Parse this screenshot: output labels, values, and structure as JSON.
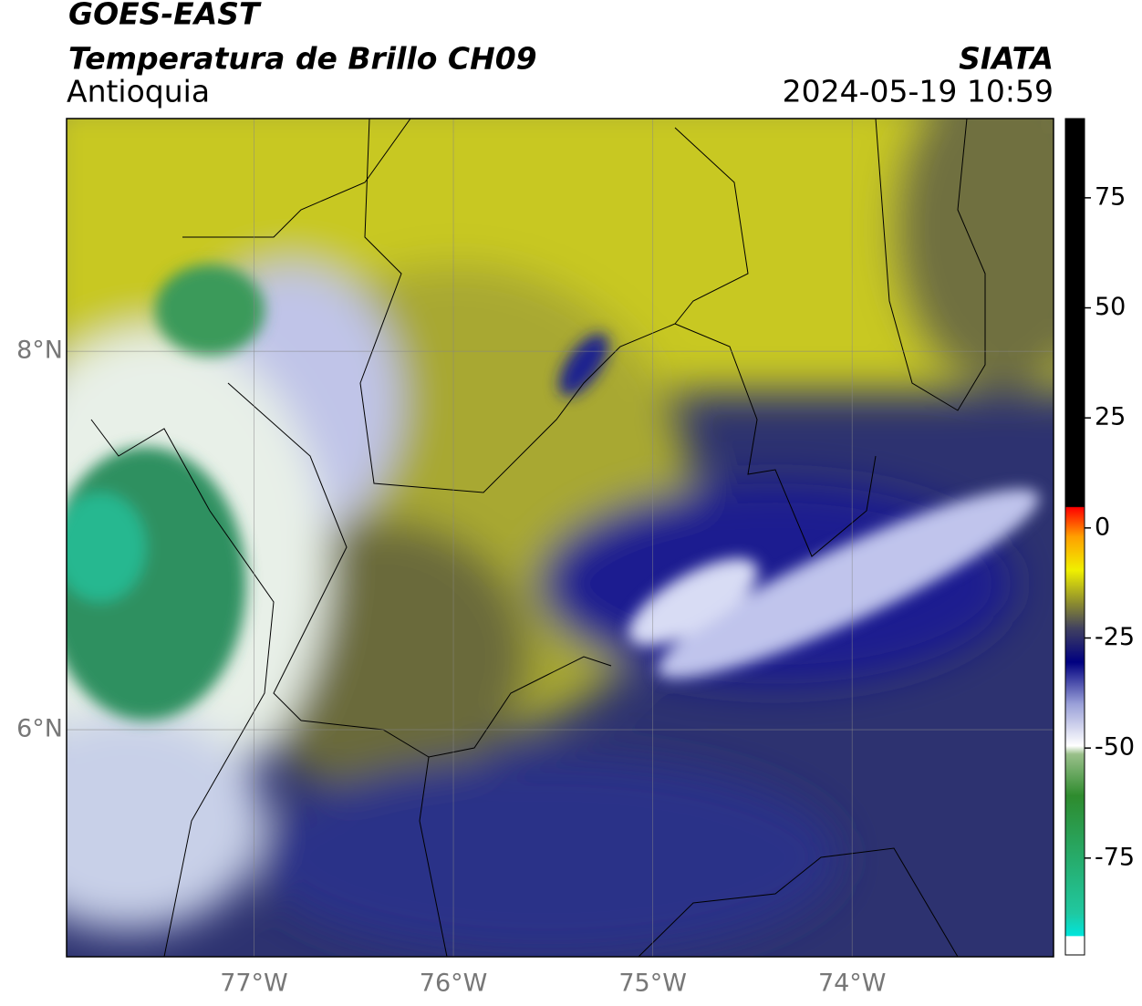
{
  "header": {
    "satellite": "GOES-EAST",
    "product": "Temperatura de Brillo CH09",
    "region": "Antioquia",
    "source": "SIATA",
    "datetime": "2024-05-19 10:59"
  },
  "map": {
    "xlim": [
      -77.94,
      -72.99
    ],
    "ylim": [
      4.8,
      9.23
    ],
    "xticks": [
      {
        "value": -77,
        "label": "77°W"
      },
      {
        "value": -76,
        "label": "76°W"
      },
      {
        "value": -75,
        "label": "75°W"
      },
      {
        "value": -74,
        "label": "74°W"
      }
    ],
    "yticks": [
      {
        "value": 8,
        "label": "8°N"
      },
      {
        "value": 6,
        "label": "6°N"
      }
    ]
  },
  "colorbar": {
    "lim": [
      -97,
      93
    ],
    "ticks": [
      75,
      50,
      25,
      0,
      -25,
      -50,
      -75
    ]
  }
}
